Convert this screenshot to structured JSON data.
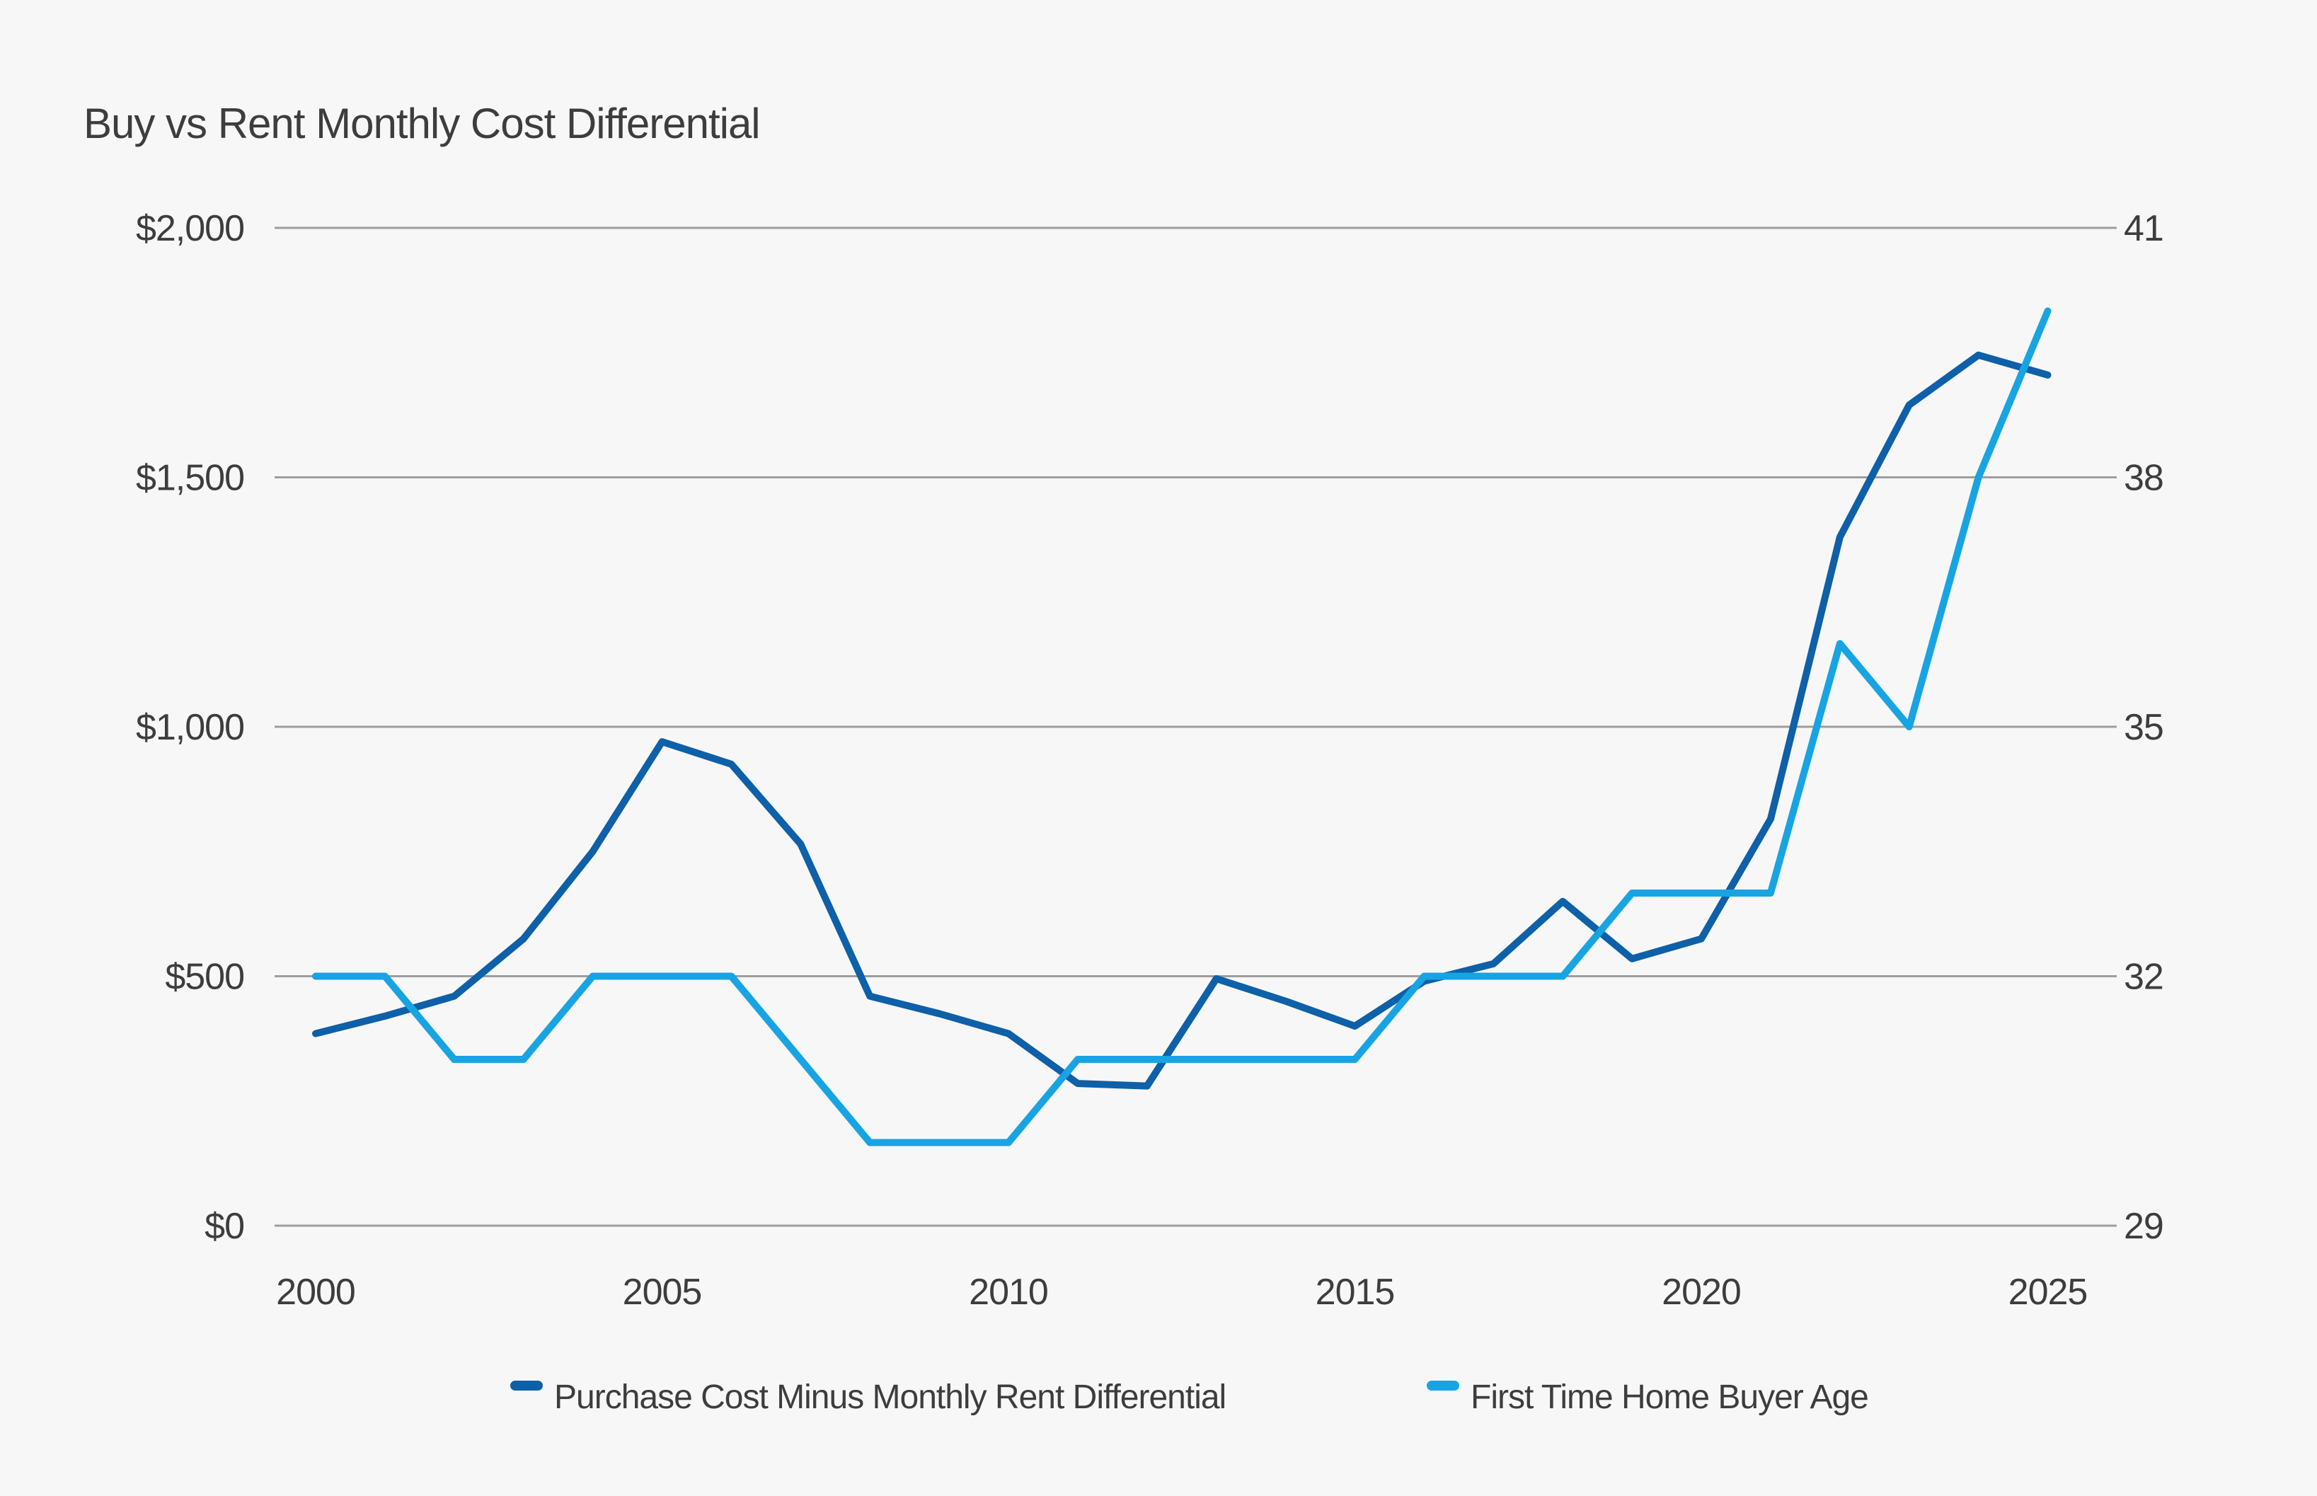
{
  "colors": {
    "purchase": "#0e60a8",
    "age": "#18a4e2",
    "grid": "#9e9e9e",
    "text": "#3d3d3d",
    "background": "#f7f7f7"
  },
  "chart_data": {
    "type": "line",
    "title": "Buy vs Rent Monthly Cost Differential",
    "x": [
      2000,
      2001,
      2002,
      2003,
      2004,
      2005,
      2006,
      2007,
      2008,
      2009,
      2010,
      2011,
      2012,
      2013,
      2014,
      2015,
      2016,
      2017,
      2018,
      2019,
      2020,
      2021,
      2022,
      2023,
      2024,
      2025
    ],
    "x_tick_labels": [
      "2000",
      "2005",
      "2010",
      "2015",
      "2020",
      "2025"
    ],
    "series": [
      {
        "name": "Purchase Cost Minus Monthly Rent Differential",
        "axis": "left",
        "color": "#0e60a8",
        "values": [
          385,
          420,
          460,
          575,
          750,
          970,
          925,
          765,
          460,
          425,
          385,
          285,
          280,
          495,
          450,
          400,
          490,
          525,
          650,
          535,
          575,
          815,
          1380,
          1645,
          1745,
          1705
        ]
      },
      {
        "name": "First Time Home Buyer Age",
        "axis": "right",
        "color": "#18a4e2",
        "values": [
          32,
          32,
          31,
          31,
          32,
          32,
          32,
          31,
          30,
          30,
          30,
          31,
          31,
          31,
          31,
          31,
          32,
          32,
          32,
          33,
          33,
          33,
          36,
          35,
          38,
          40
        ]
      }
    ],
    "yaxis_left": {
      "ticks": [
        "$0",
        "$500",
        "$1,000",
        "$1,500",
        "$2,000"
      ],
      "values": [
        0,
        500,
        1000,
        1500,
        2000
      ],
      "range": [
        0,
        2000
      ]
    },
    "yaxis_right": {
      "ticks": [
        "29",
        "32",
        "35",
        "38",
        "41"
      ],
      "values": [
        29,
        32,
        35,
        38,
        41
      ],
      "range": [
        29,
        41
      ]
    },
    "grid": "horizontal-only",
    "legend_position": "bottom-center"
  }
}
